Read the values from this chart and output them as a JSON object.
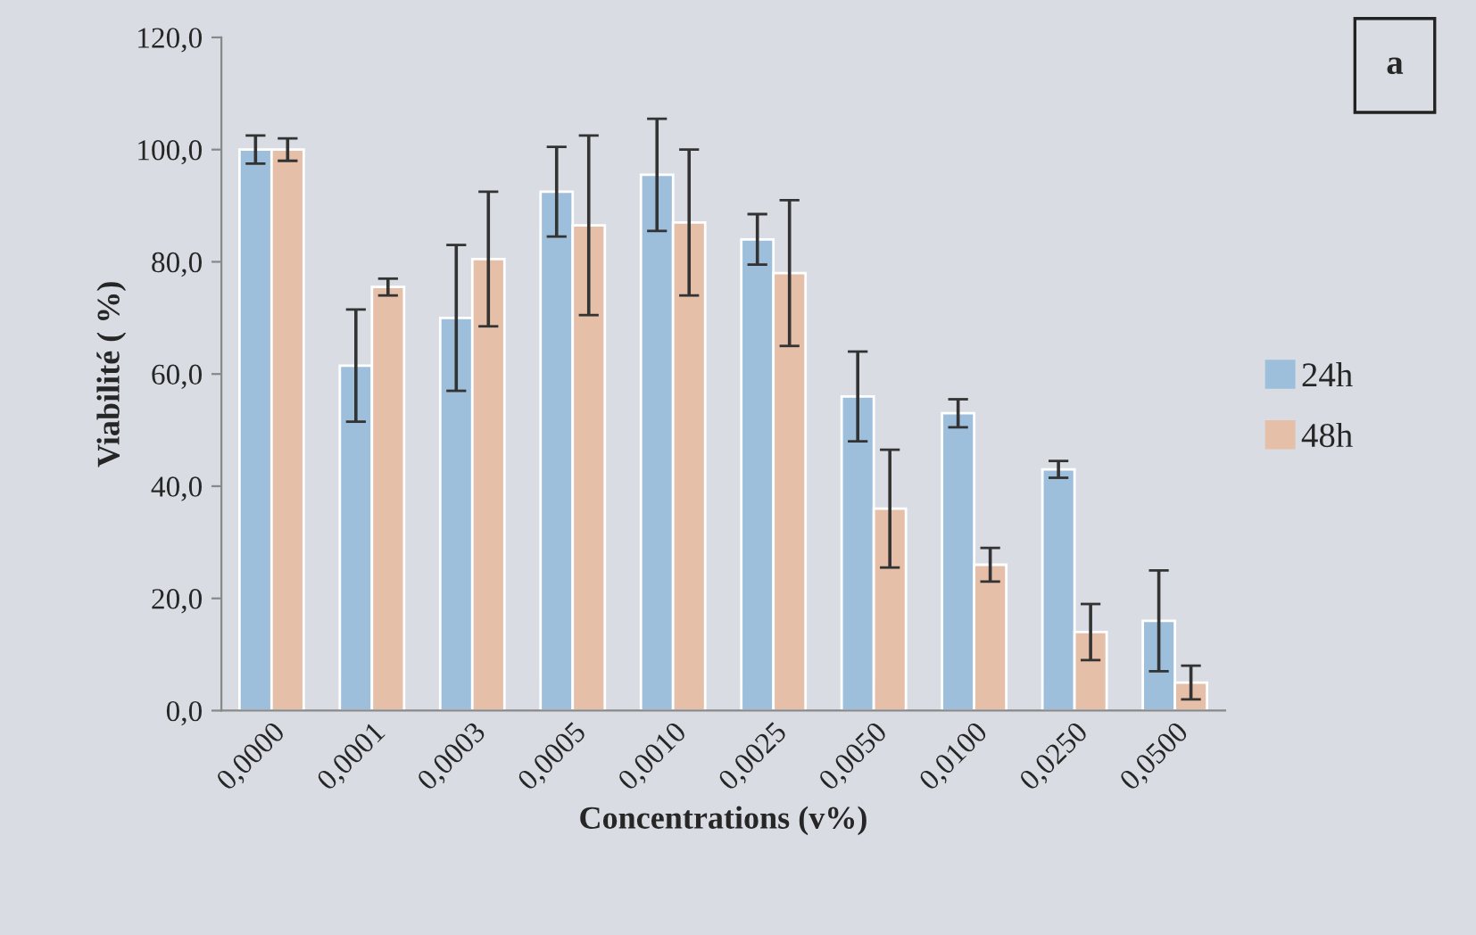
{
  "chart_data": {
    "type": "bar",
    "xlabel": "Concentrations (v%)",
    "ylabel": "Viabilité ( %)",
    "categories": [
      "0,0000",
      "0,0001",
      "0,0003",
      "0,0005",
      "0,0010",
      "0,0025",
      "0,0050",
      "0,0100",
      "0,0250",
      "0,0500"
    ],
    "series": [
      {
        "name": "24h",
        "color": "#9dbfdc",
        "values": [
          100,
          61.5,
          70,
          92.5,
          95.5,
          84,
          56,
          53,
          43,
          16
        ],
        "errors": [
          2.5,
          10,
          13,
          8,
          10,
          4.5,
          8,
          2.5,
          1.5,
          9
        ]
      },
      {
        "name": "48h",
        "color": "#e5bfa8",
        "values": [
          100,
          75.5,
          80.5,
          86.5,
          87,
          78,
          36,
          26,
          14,
          5
        ],
        "errors": [
          2,
          1.5,
          12,
          16,
          13,
          13,
          10.5,
          3,
          5,
          3
        ]
      }
    ],
    "ylim": [
      0,
      120
    ],
    "yticks": [
      {
        "value": 0,
        "label": "0,0"
      },
      {
        "value": 20,
        "label": "20,0"
      },
      {
        "value": 40,
        "label": "40,0"
      },
      {
        "value": 60,
        "label": "60,0"
      },
      {
        "value": 80,
        "label": "80,0"
      },
      {
        "value": 100,
        "label": "100,0"
      },
      {
        "value": 120,
        "label": "120,0"
      }
    ],
    "annotations": [
      "a"
    ],
    "legend": "right",
    "grid": false
  }
}
